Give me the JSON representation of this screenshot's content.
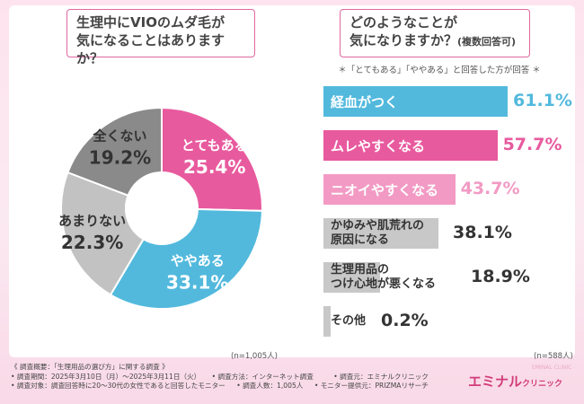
{
  "left": {
    "title_line1": "生理中にVIOのムダ毛が",
    "title_line2": "気になることはありますか？",
    "n_note": "(n=1,005人)"
  },
  "right": {
    "title_line1": "どのようなことが",
    "title_line2": "気になりますか？",
    "title_line2_small": "(複数回答可)",
    "subnote": "＊「とてもある」「ややある」と回答した方が回答 ＊",
    "n_note": "(n=588人)"
  },
  "chart_data": [
    {
      "type": "pie",
      "title": "生理中にVIOのムダ毛が気になることはありますか？",
      "categories": [
        "とてもある",
        "ややある",
        "あまりない",
        "全くない"
      ],
      "values": [
        25.4,
        33.1,
        22.3,
        19.2
      ],
      "value_labels": [
        "25.4%",
        "33.1%",
        "22.3%",
        "19.2%"
      ],
      "colors": [
        "#e85a9e",
        "#52b9dd",
        "#c2c2c2",
        "#8a8a8a"
      ],
      "unit": "%"
    },
    {
      "type": "bar",
      "title": "どのようなことが気になりますか？(複数回答可)",
      "categories": [
        "経血がつく",
        "ムレやすくなる",
        "ニオイやすくなる",
        "かゆみや肌荒れの原因になる",
        "生理用品のつけ心地が悪くなる",
        "その他"
      ],
      "category_lines": [
        [
          "経血がつく"
        ],
        [
          "ムレやすくなる"
        ],
        [
          "ニオイやすくなる"
        ],
        [
          "かゆみや肌荒れの",
          "原因になる"
        ],
        [
          "生理用品の",
          "つけ心地が悪くなる"
        ],
        [
          "その他"
        ]
      ],
      "values": [
        61.1,
        57.7,
        43.7,
        38.1,
        18.9,
        0.2
      ],
      "value_labels": [
        "61.1%",
        "57.7%",
        "43.7%",
        "38.1%",
        "18.9%",
        "0.2%"
      ],
      "colors": [
        "#52b9dd",
        "#e85a9e",
        "#f29ac4",
        "#c8c8c8",
        "#c8c8c8",
        "#c8c8c8"
      ],
      "value_colors": [
        "#52b9dd",
        "#e85a9e",
        "#f29ac4",
        "#333333",
        "#333333",
        "#333333"
      ],
      "xlim": [
        0,
        61.1
      ],
      "unit": "%"
    }
  ],
  "survey": {
    "heading": "《 調査概要：「生理用品の選び方」に関する調査 》",
    "period": "• 調査期間：2025年3月10日（月）〜2025年3月11日（火）",
    "method": "• 調査方法：インターネット調査",
    "org": "• 調査元：エミナルクリニック",
    "target": "• 調査対象：調査回答時に20〜30代の女性であると回答したモニター",
    "count": "• 調査人数：1,005人",
    "provider": "• モニター提供元：PRIZMAリサーチ"
  },
  "brand": {
    "name": "エミナル",
    "sub": "クリニック",
    "ghost": "EMINAL CLINIC"
  }
}
